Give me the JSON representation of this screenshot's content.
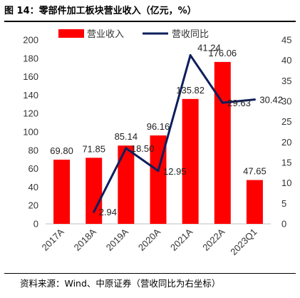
{
  "figure": {
    "title": "图 14：零部件加工板块营业收入（亿元，%）",
    "source": "资料来源：Wind、中原证券（营收同比为右坐标）"
  },
  "chart_data": {
    "type": "bar",
    "categories": [
      "2017A",
      "2018A",
      "2019A",
      "2020A",
      "2021A",
      "2022A",
      "2023Q1"
    ],
    "series": [
      {
        "name": "营业收入",
        "type": "bar",
        "axis": "left",
        "color": "#ff0000",
        "values": [
          69.8,
          71.85,
          85.14,
          96.16,
          135.82,
          176.06,
          47.65
        ],
        "labels": [
          "69.80",
          "71.85",
          "85.14",
          "96.16",
          "135.82",
          "176.06",
          "47.65"
        ]
      },
      {
        "name": "营收同比",
        "type": "line",
        "axis": "right",
        "color": "#0d1f5c",
        "values": [
          null,
          2.94,
          18.5,
          12.95,
          41.24,
          29.63,
          30.42
        ],
        "labels": [
          "",
          "2.94",
          "18.50",
          "12.95",
          "41.24",
          "29.63",
          "30.42"
        ]
      }
    ],
    "y_left": {
      "ylim": [
        0,
        200
      ],
      "ticks": [
        0,
        20,
        40,
        60,
        80,
        100,
        120,
        140,
        160,
        180,
        200
      ]
    },
    "y_right": {
      "ylim": [
        0,
        45
      ],
      "ticks": [
        0,
        5,
        10,
        15,
        20,
        25,
        30,
        35,
        40,
        45
      ]
    },
    "legend": "top",
    "grid": false
  }
}
